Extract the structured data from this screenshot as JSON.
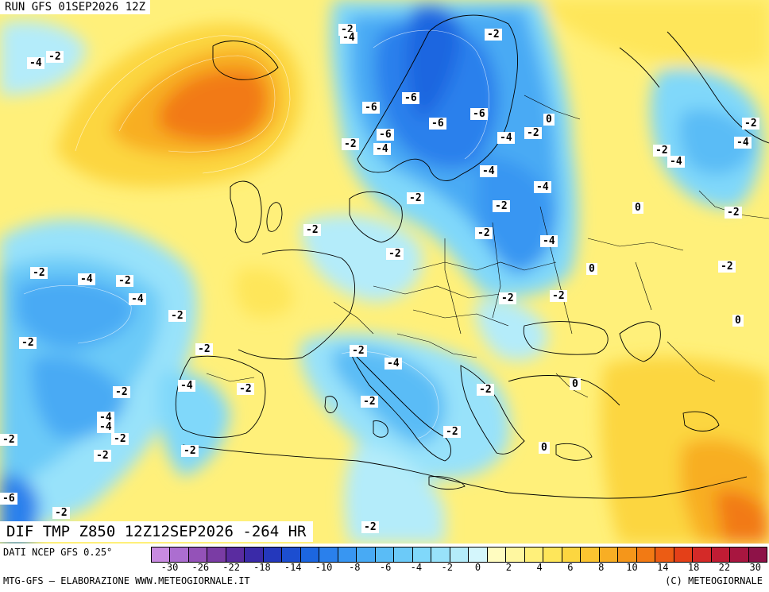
{
  "header": {
    "run_label": "RUN GFS 01SEP2026 12Z"
  },
  "title": {
    "text": "DIF TMP Z850 12Z12SEP2026 -264 HR"
  },
  "footer": {
    "source": "DATI NCEP GFS 0.25°",
    "credits": "MTG-GFS – ELABORAZIONE WWW.METEOGIORNALE.IT",
    "copyright": "(C) METEOGIORNALE"
  },
  "legend": {
    "colors": [
      "#c88ae0",
      "#ac6ed0",
      "#9452b8",
      "#7a3ca4",
      "#5a2ca0",
      "#3a2aa8",
      "#2438bc",
      "#1c4ed0",
      "#1c66e0",
      "#2a80ec",
      "#3896f2",
      "#48aaf4",
      "#5abcf6",
      "#6ccaf8",
      "#80d8fa",
      "#98e2fa",
      "#b4ecfa",
      "#d4f6fc",
      "#fffcc0",
      "#fff7a0",
      "#fff07a",
      "#fee65a",
      "#fcd640",
      "#fbc430",
      "#f8ae24",
      "#f5961a",
      "#f27a14",
      "#ec5c14",
      "#e44018",
      "#d42a28",
      "#c01c34",
      "#a81640",
      "#8e1248"
    ],
    "ticks": [
      "-30",
      "-26",
      "-22",
      "-18",
      "-14",
      "-10",
      "-8",
      "-6",
      "-4",
      "-2",
      "0",
      "2",
      "4",
      "6",
      "8",
      "10",
      "14",
      "18",
      "22",
      "30"
    ]
  },
  "map_labels": [
    {
      "t": "-4"
    },
    {
      "t": "-2"
    },
    {
      "t": "-2"
    },
    {
      "t": "-4"
    },
    {
      "t": "-2"
    },
    {
      "t": "-6"
    },
    {
      "t": "-6"
    },
    {
      "t": "-6"
    },
    {
      "t": "-6"
    },
    {
      "t": "0"
    },
    {
      "t": "-6"
    },
    {
      "t": "-2"
    },
    {
      "t": "-4"
    },
    {
      "t": "-2"
    },
    {
      "t": "-4"
    },
    {
      "t": "-2"
    },
    {
      "t": "-4"
    },
    {
      "t": "-2"
    },
    {
      "t": "-4"
    },
    {
      "t": "-4"
    },
    {
      "t": "-2"
    },
    {
      "t": "0"
    },
    {
      "t": "-2"
    },
    {
      "t": "-4"
    },
    {
      "t": "-2"
    },
    {
      "t": "-2"
    },
    {
      "t": "-4"
    },
    {
      "t": "-2"
    },
    {
      "t": "-2"
    },
    {
      "t": "0"
    },
    {
      "t": "-2"
    },
    {
      "t": "-4"
    },
    {
      "t": "-2"
    },
    {
      "t": "-4"
    },
    {
      "t": "-2"
    },
    {
      "t": "-2"
    },
    {
      "t": "-2"
    },
    {
      "t": "-2"
    },
    {
      "t": "-2"
    },
    {
      "t": "0"
    },
    {
      "t": "-2"
    },
    {
      "t": "-2"
    },
    {
      "t": "-4"
    },
    {
      "t": "-2"
    },
    {
      "t": "-2"
    },
    {
      "t": "-4"
    },
    {
      "t": "-2"
    },
    {
      "t": "-2"
    },
    {
      "t": "-2"
    },
    {
      "t": "0"
    },
    {
      "t": "-2"
    },
    {
      "t": "0"
    },
    {
      "t": "-4"
    },
    {
      "t": "-4"
    },
    {
      "t": "-2"
    },
    {
      "t": "-2"
    },
    {
      "t": "-2"
    },
    {
      "t": "-2"
    },
    {
      "t": "-6"
    },
    {
      "t": "-2"
    },
    {
      "t": "-2"
    },
    {
      "t": "0"
    }
  ]
}
